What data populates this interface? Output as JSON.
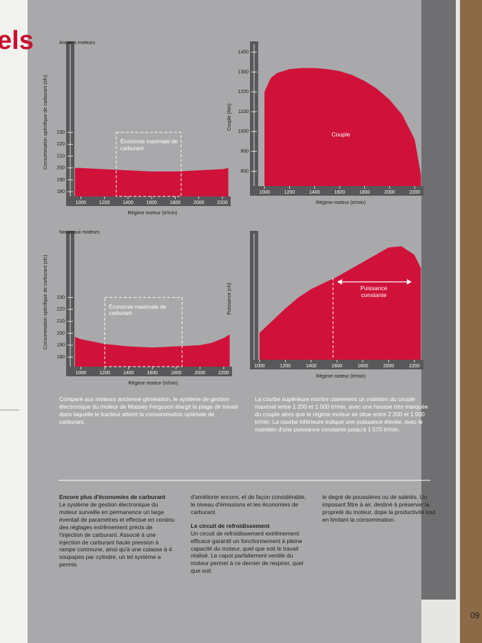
{
  "left_page": {
    "heading": "els"
  },
  "chart_data": [
    {
      "type": "area",
      "title": "Anciens moteurs",
      "y_label": "Consommation spécifique de carburant (sfc)",
      "x_label": "Régime moteur (tr/min)",
      "x": [
        950,
        1000,
        1200,
        1400,
        1600,
        1800,
        2000,
        2200,
        2250
      ],
      "values": [
        200,
        200,
        199,
        198,
        197,
        197,
        198,
        199,
        200
      ],
      "color": "#d0123a",
      "xlim": [
        945,
        2270
      ],
      "ylim": [
        176,
        301
      ],
      "xticks": [
        1000,
        1200,
        1400,
        1600,
        1800,
        2000,
        2200
      ],
      "yticks": [
        180,
        190,
        200,
        210,
        220,
        230
      ],
      "box": {
        "text": "Économie maximale de carburant",
        "x": [
          1300,
          1850
        ],
        "y_top": 230
      }
    },
    {
      "type": "area",
      "y_label": "Couple (Nm)",
      "x_label": "Régime moteur (tr/min)",
      "x": [
        1000,
        1050,
        1100,
        1200,
        1300,
        1400,
        1500,
        1600,
        1700,
        1800,
        1900,
        2000,
        2100,
        2200,
        2250
      ],
      "values": [
        1200,
        1270,
        1295,
        1315,
        1320,
        1320,
        1315,
        1305,
        1285,
        1255,
        1215,
        1160,
        1085,
        960,
        780
      ],
      "color": "#d0123a",
      "xlim": [
        950,
        2270
      ],
      "ylim": [
        725,
        1420
      ],
      "xticks": [
        1000,
        1200,
        1400,
        1600,
        1800,
        2000,
        2200
      ],
      "yticks": [
        800,
        900,
        1000,
        1100,
        1200,
        1300,
        1400
      ],
      "area_label": {
        "text": "Couple"
      }
    },
    {
      "type": "area",
      "title": "Nouveaux moteurs",
      "y_label": "Consommation spécifique de carburant (sfc)",
      "x_label": "Régime moteur (tr/min)",
      "x": [
        950,
        1000,
        1100,
        1200,
        1400,
        1600,
        1800,
        2000,
        2100,
        2200,
        2250
      ],
      "values": [
        197,
        195,
        193,
        191,
        189,
        188,
        189,
        190,
        192,
        196,
        199
      ],
      "color": "#d0123a",
      "xlim": [
        945,
        2270
      ],
      "ylim": [
        172,
        280
      ],
      "xticks": [
        1000,
        1200,
        1400,
        1600,
        1800,
        2000,
        2200
      ],
      "yticks": [
        180,
        190,
        200,
        210,
        220,
        230
      ],
      "box": {
        "text": "Économie maximale de carburant",
        "x": [
          1200,
          1850
        ],
        "y_top": 230
      }
    },
    {
      "type": "area",
      "y_label": "Puissance (ch)",
      "x_label": "Régime moteur (tr/min)",
      "x": [
        1000,
        1100,
        1200,
        1300,
        1400,
        1500,
        1600,
        1700,
        1800,
        1900,
        2000,
        2100,
        2200,
        2250
      ],
      "values": [
        22,
        32,
        42,
        51,
        58,
        63,
        68,
        74,
        80,
        86,
        92,
        93,
        86,
        75
      ],
      "color": "#d0123a",
      "xlim": [
        990,
        2270
      ],
      "ylim": [
        0,
        100
      ],
      "xticks": [
        1000,
        1200,
        1400,
        1600,
        1800,
        2000,
        2200
      ],
      "yticks": [],
      "range_label": {
        "text": "Puissance constante",
        "range": [
          1570,
          2200
        ]
      }
    }
  ],
  "captions": [
    "Comparé aux moteurs ancienne génération, le système de gestion électronique du moteur de Massey Ferguson élargit la plage de travail dans laquelle le tracteur atteint la consommation optimale de carburant.",
    "La courbe supérieure montre clairement un maintien du couple maximal entre 1 200 et 1 500 tr/min, avec une hausse très marquée du couple alors que le régime moteur se situe entre 2 200 et 1 500 tr/min. La courbe inférieure indique une puissance élevée, avec le maintien d'une puissance constante jusqu'à 1 570 tr/min."
  ],
  "columns": [
    [
      {
        "heading": "Encore plus d'économies de carburant"
      },
      {
        "text": "Le système de gestion électronique du moteur surveille en permanence un large éventail de paramètres et effectue en continu des réglages extrêmement précis de l'injection de carburant. Associé à une injection de carburant haute pression à rampe commune, ainsi qu'à une culasse à 4 soupapes par cylindre, un tel système a permis"
      }
    ],
    [
      {
        "text": "d'améliorer encore, et de façon considérable, le niveau d'émissions et les économies de carburant."
      },
      {
        "heading": "Le circuit de refroidissement"
      },
      {
        "text": "Un circuit de refroidissement extrêmement efficace garantit un fonctionnement à pleine capacité du moteur, quel que soit le travail réalisé. Le capot parfaitement ventilé du moteur permet à ce dernier de respirer, quel que soit"
      }
    ],
    [
      {
        "text": "le degré de poussières ou de saletés. Un imposant filtre à air, destiné à préserver la propreté du moteur, dope la productivité tout en limitant la consommation."
      }
    ]
  ],
  "page_number": "09"
}
